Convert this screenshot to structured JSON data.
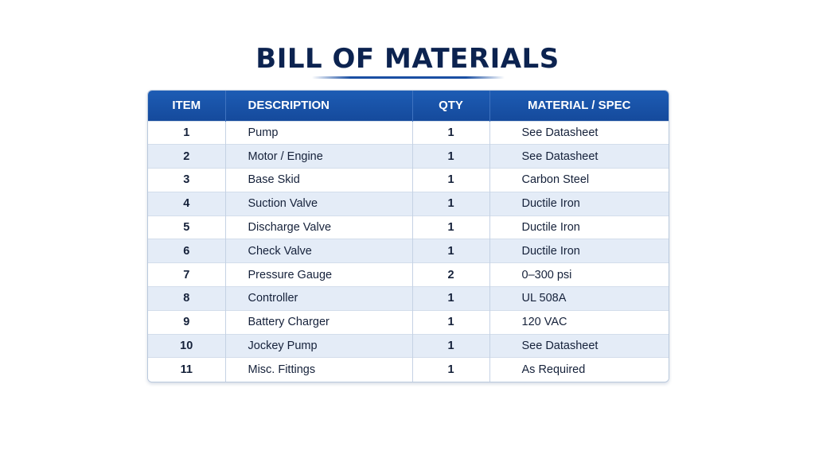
{
  "title": "BILL OF MATERIALS",
  "table": {
    "headers": {
      "item": "ITEM",
      "description": "DESCRIPTION",
      "qty": "QTY",
      "spec": "MATERIAL / SPEC"
    },
    "rows": [
      {
        "item": "1",
        "description": "Pump",
        "qty": "1",
        "spec": "See Datasheet"
      },
      {
        "item": "2",
        "description": "Motor / Engine",
        "qty": "1",
        "spec": "See Datasheet"
      },
      {
        "item": "3",
        "description": "Base Skid",
        "qty": "1",
        "spec": "Carbon Steel"
      },
      {
        "item": "4",
        "description": "Suction Valve",
        "qty": "1",
        "spec": "Ductile Iron"
      },
      {
        "item": "5",
        "description": "Discharge Valve",
        "qty": "1",
        "spec": "Ductile Iron"
      },
      {
        "item": "6",
        "description": "Check Valve",
        "qty": "1",
        "spec": "Ductile Iron"
      },
      {
        "item": "7",
        "description": "Pressure Gauge",
        "qty": "2",
        "spec": "0–300 psi"
      },
      {
        "item": "8",
        "description": "Controller",
        "qty": "1",
        "spec": "UL 508A"
      },
      {
        "item": "9",
        "description": "Battery Charger",
        "qty": "1",
        "spec": "120 VAC"
      },
      {
        "item": "10",
        "description": "Jockey Pump",
        "qty": "1",
        "spec": "See Datasheet"
      },
      {
        "item": "11",
        "description": "Misc. Fittings",
        "qty": "1",
        "spec": "As Required"
      }
    ]
  },
  "colors": {
    "title": "#0c2350",
    "header_bg": "#1a55aa",
    "row_alt_bg": "#e4ecf7"
  }
}
